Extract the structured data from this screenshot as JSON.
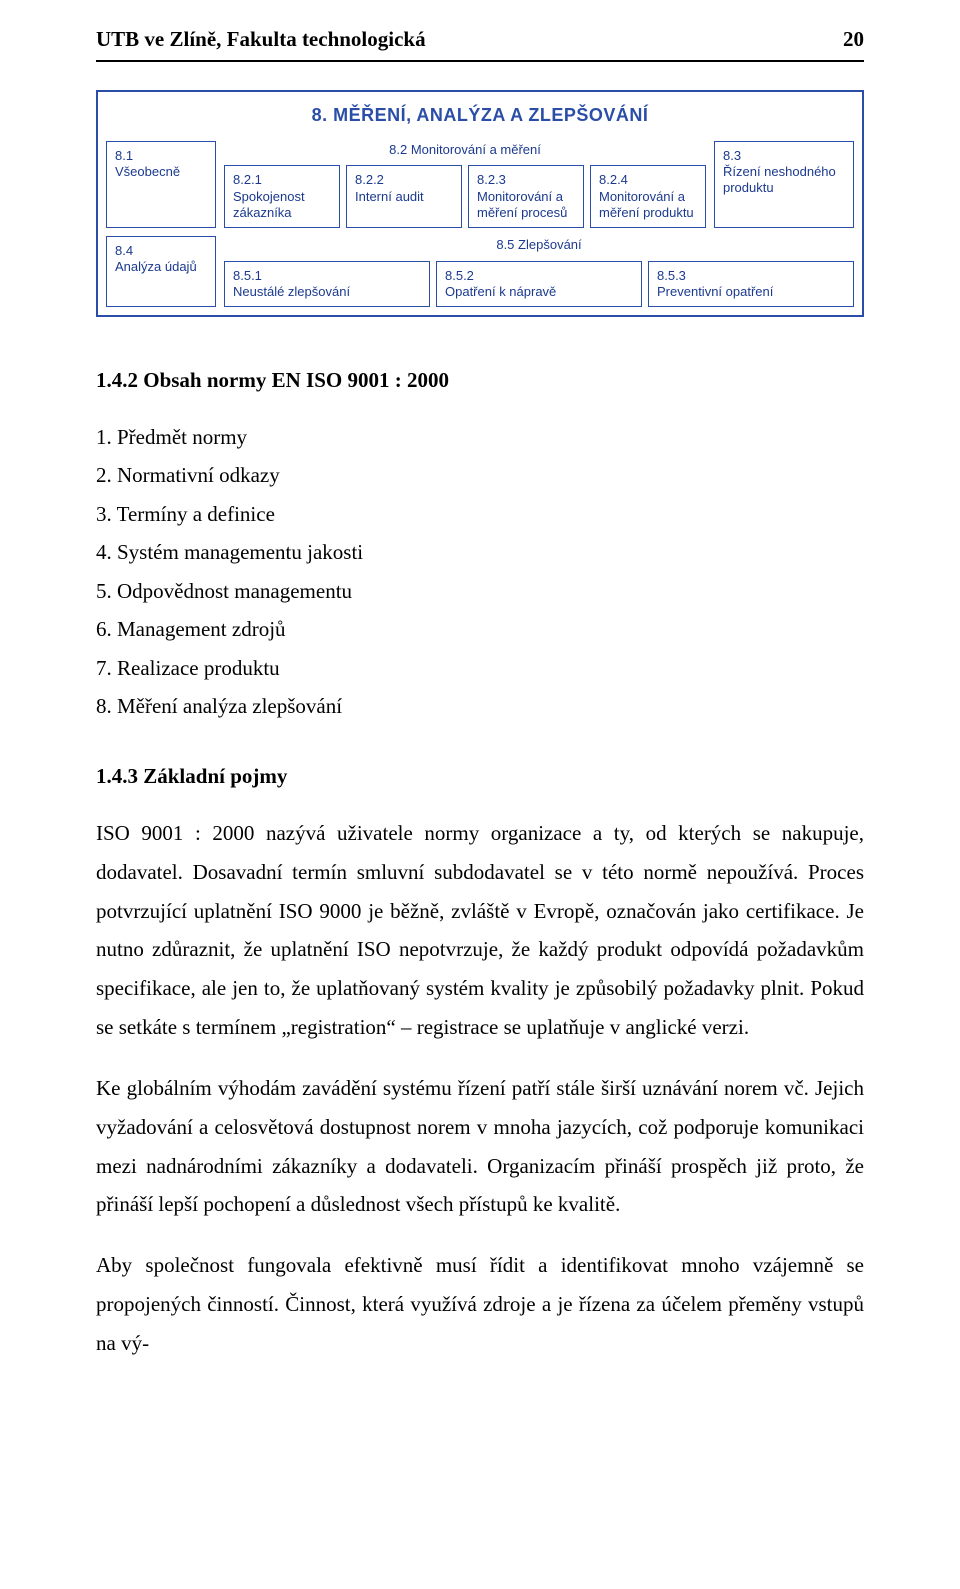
{
  "header": {
    "title": "UTB ve Zlíně, Fakulta technologická",
    "page": "20"
  },
  "diagram": {
    "title": "8. MĚŘENÍ, ANALÝZA A ZLEPŠOVÁNÍ",
    "border_color": "#2a4ea8",
    "text_color": "#1b3a8f",
    "font_family": "Arial",
    "cells": {
      "c81": {
        "num": "8.1",
        "label": "Všeobecně"
      },
      "c82": {
        "num": "8.2",
        "label": "Monitorování a měření"
      },
      "c821": {
        "num": "8.2.1",
        "label": "Spokojenost zákazníka"
      },
      "c822": {
        "num": "8.2.2",
        "label": "Interní audit"
      },
      "c823": {
        "num": "8.2.3",
        "label": "Monitorování a měření procesů"
      },
      "c824": {
        "num": "8.2.4",
        "label": "Monitorování a měření produktu"
      },
      "c83": {
        "num": "8.3",
        "label": "Řízení neshodného produktu"
      },
      "c84": {
        "num": "8.4",
        "label": "Analýza údajů"
      },
      "c85": {
        "num": "8.5",
        "label": "Zlepšování"
      },
      "c851": {
        "num": "8.5.1",
        "label": "Neustálé zlepšování"
      },
      "c852": {
        "num": "8.5.2",
        "label": "Opatření k nápravě"
      },
      "c853": {
        "num": "8.5.3",
        "label": "Preventivní opatření"
      }
    }
  },
  "section1": {
    "heading": "1.4.2   Obsah normy EN ISO 9001 : 2000",
    "items": [
      "1. Předmět normy",
      "2. Normativní odkazy",
      "3. Termíny a definice",
      "4. Systém managementu jakosti",
      "5. Odpovědnost managementu",
      "6. Management zdrojů",
      "7. Realizace produktu",
      "8. Měření analýza zlepšování"
    ]
  },
  "section2": {
    "heading": "1.4.3   Základní pojmy",
    "p1": "ISO 9001 : 2000 nazývá uživatele normy organizace a ty, od kterých se nakupuje, dodavatel. Dosavadní termín smluvní subdodavatel se v této normě nepoužívá. Proces potvrzující uplatnění ISO 9000 je běžně, zvláště v Evropě, označován jako certifikace. Je nutno zdůraznit, že uplatnění ISO nepotvrzuje, že každý produkt odpovídá požadavkům specifikace, ale jen to, že uplatňovaný systém kvality je způsobilý požadavky plnit. Pokud se setkáte s termínem „registration“ – registrace se uplatňuje v anglické verzi.",
    "p2": "Ke globálním výhodám zavádění systému řízení patří stále širší uznávání norem vč. Jejich vyžadování a celosvětová dostupnost norem v mnoha jazycích, což podporuje komunikaci mezi nadnárodními zákazníky a dodavateli. Organizacím přináší prospěch již proto, že přináší lepší pochopení a důslednost všech přístupů ke kvalitě.",
    "p3": "Aby společnost fungovala efektivně musí řídit a identifikovat mnoho vzájemně se propojených činností. Činnost, která využívá zdroje a je řízena za účelem přeměny vstupů na vý-"
  }
}
